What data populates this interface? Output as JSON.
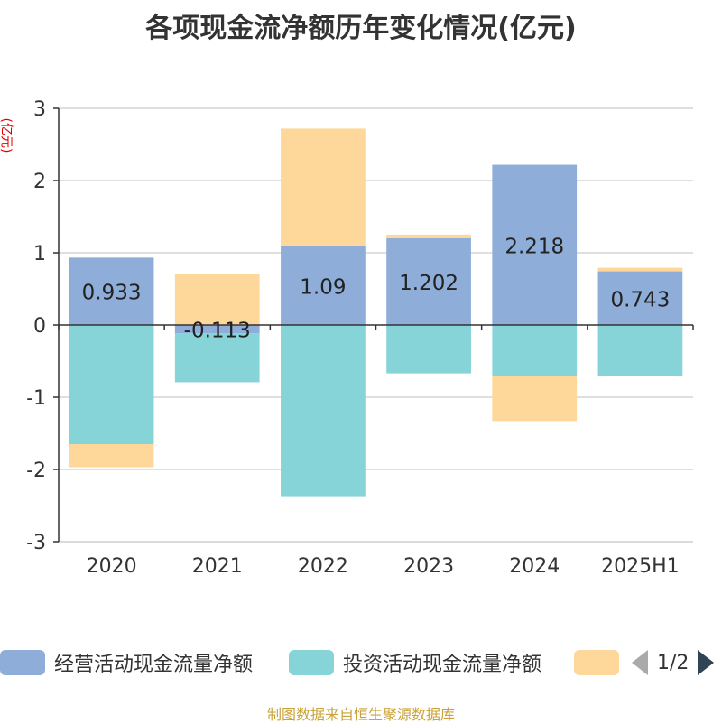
{
  "title": "各项现金流净额历年变化情况(亿元)",
  "unit_label": "(亿元)",
  "source": "制图数据来自恒生聚源数据库",
  "pager": {
    "text": "1/2"
  },
  "legend": [
    {
      "label": "经营活动现金流量净额",
      "color": "#8eadd9"
    },
    {
      "label": "投资活动现金流量净额",
      "color": "#86d4d8"
    },
    {
      "label": "",
      "color": "#fdd89a"
    }
  ],
  "chart_data": {
    "type": "bar",
    "stacked": true,
    "categories": [
      "2020",
      "2021",
      "2022",
      "2023",
      "2024",
      "2025H1"
    ],
    "ylim": [
      -3,
      3
    ],
    "yticks": [
      3,
      2,
      1,
      0,
      -1,
      -2,
      -3
    ],
    "grid": true,
    "legend_position": "bottom",
    "series": [
      {
        "name": "经营活动现金流量净额",
        "color": "#8eadd9",
        "values": [
          0.933,
          -0.113,
          1.09,
          1.202,
          2.218,
          0.743
        ],
        "labels": [
          "0.933",
          "-0.113",
          "1.09",
          "1.202",
          "2.218",
          "0.743"
        ]
      },
      {
        "name": "投资活动现金流量净额",
        "color": "#86d4d8",
        "values": [
          -1.65,
          -0.68,
          -2.37,
          -0.67,
          -0.7,
          -0.71
        ]
      },
      {
        "color": "#fdd89a",
        "values": [
          -0.32,
          0.71,
          1.63,
          0.05,
          -0.63,
          0.05
        ]
      }
    ]
  }
}
